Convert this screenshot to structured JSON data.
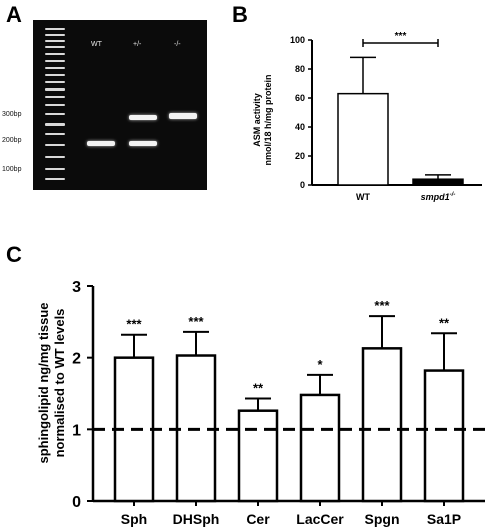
{
  "panels": {
    "a": "A",
    "b": "B",
    "c": "C"
  },
  "gel": {
    "lanes": [
      "WT",
      "+/-",
      "-/-"
    ],
    "bp_labels": [
      "300bp",
      "200bp",
      "100bp"
    ]
  },
  "chart_data": [
    {
      "type": "bar",
      "categories": [
        "WT",
        "smpd1"
      ],
      "category_superscript": [
        "",
        "-/-"
      ],
      "values": [
        63,
        4
      ],
      "errors": [
        25,
        3
      ],
      "bar_fill": [
        "#ffffff",
        "#000000"
      ],
      "title": "",
      "ylabel_lines": [
        "ASM activity",
        "nmol/18 h/mg protein"
      ],
      "ylim": [
        0,
        100
      ],
      "yticks": [
        "0",
        "20",
        "40",
        "60",
        "80",
        "100"
      ],
      "significance": {
        "label": "***",
        "between": [
          0,
          1
        ]
      }
    },
    {
      "type": "bar",
      "categories": [
        "Sph",
        "DHSph",
        "Cer",
        "LacCer",
        "Spgn",
        "Sa1P"
      ],
      "values": [
        2.0,
        2.03,
        1.26,
        1.48,
        2.13,
        1.82
      ],
      "errors": [
        0.32,
        0.33,
        0.17,
        0.28,
        0.45,
        0.52
      ],
      "significance": [
        "***",
        "***",
        "**",
        "*",
        "***",
        "**"
      ],
      "title": "",
      "ylabel_lines": [
        "sphingolipid ng/mg tissue",
        "normalised to WT levels"
      ],
      "ylim": [
        0,
        3
      ],
      "yticks": [
        "0",
        "1",
        "2",
        "3"
      ],
      "reference_line": 1
    }
  ]
}
